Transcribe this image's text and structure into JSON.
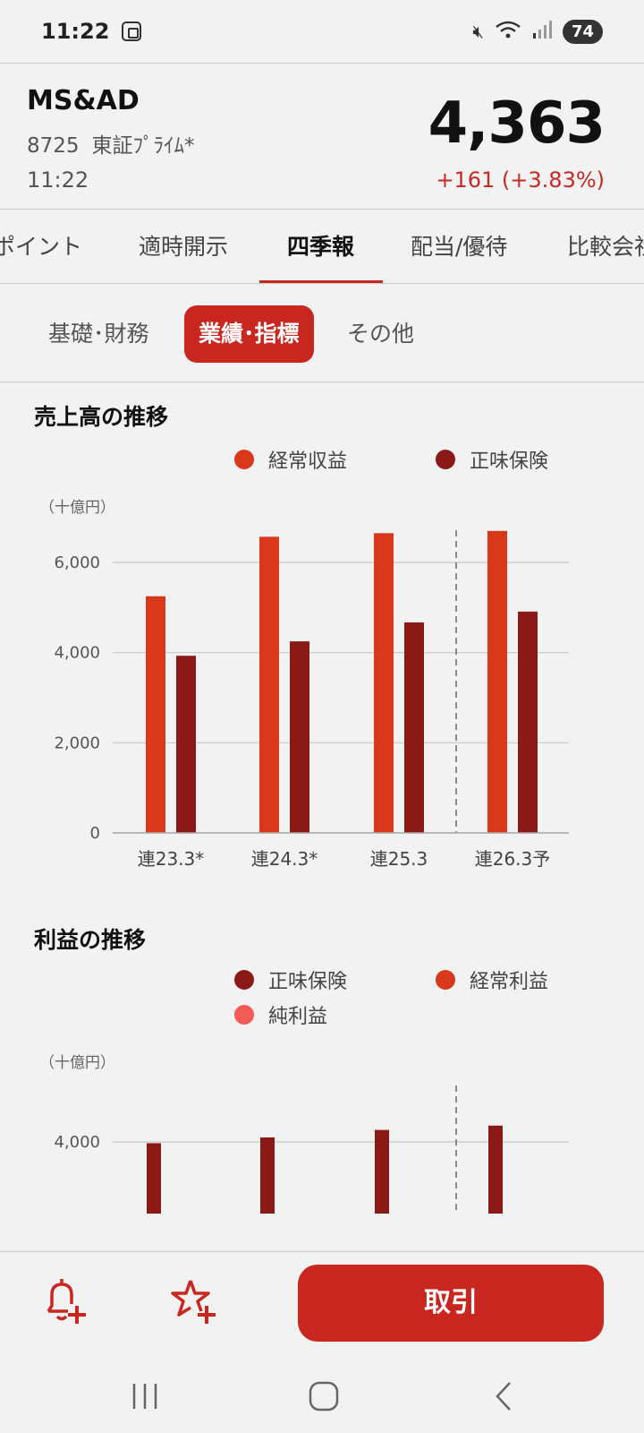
{
  "status_bar": {
    "time": "11:22",
    "battery": "74",
    "icons": [
      "screenshot-icon",
      "mute-icon",
      "wifi-icon",
      "signal-icon",
      "battery-icon"
    ]
  },
  "stock": {
    "name": "MS&AD",
    "code": "8725",
    "market": "東証ﾌﾟﾗｲﾑ*",
    "time": "11:22",
    "price": "4,363",
    "change": "+161 (+3.83%)",
    "change_color": "#c62a22"
  },
  "tabs": [
    {
      "label": "ポイント"
    },
    {
      "label": "適時開示"
    },
    {
      "label": "四季報",
      "active": true
    },
    {
      "label": "配当/優待"
    },
    {
      "label": "比較会社"
    }
  ],
  "subtabs": [
    {
      "label": "基礎･財務"
    },
    {
      "label": "業績･指標",
      "active": true
    },
    {
      "label": "その他"
    }
  ],
  "chart_data": [
    {
      "type": "bar",
      "title": "売上高の推移",
      "unit": "（十億円）",
      "categories": [
        "連23.3*",
        "連24.3*",
        "連25.3",
        "連26.3予"
      ],
      "series": [
        {
          "name": "経常収益",
          "color": "#d9391a",
          "values": [
            5250,
            6570,
            6650,
            6700
          ]
        },
        {
          "name": "正味保険",
          "color": "#8b1a17",
          "values": [
            3930,
            4250,
            4670,
            4910
          ]
        }
      ],
      "ylim": [
        0,
        6900
      ],
      "yticks": [
        0,
        2000,
        4000,
        6000
      ],
      "ytick_labels": [
        "0",
        "2,000",
        "4,000",
        "6,000"
      ],
      "forecast_divider_after": "連25.3",
      "grid": true,
      "legend": "top-right"
    },
    {
      "type": "bar",
      "title": "利益の推移",
      "unit": "（十億円）",
      "categories": [
        "連23.3*",
        "連24.3*",
        "連25.3",
        "連26.3予"
      ],
      "series": [
        {
          "name": "正味保険",
          "color": "#8b1a17",
          "values": [
            3930,
            4250,
            4670,
            4910
          ]
        },
        {
          "name": "経常利益",
          "color": "#d9391a"
        },
        {
          "name": "純利益",
          "color": "#f25a55"
        }
      ],
      "yticks": [
        4000
      ],
      "ytick_labels": [
        "4,000"
      ],
      "forecast_divider_after": "連25.3",
      "grid": true,
      "legend": "top-right"
    }
  ],
  "actions": {
    "trade_label": "取引",
    "icons": [
      "bell-add-icon",
      "star-add-icon"
    ]
  },
  "nav": {
    "icons": [
      "recent-apps-icon",
      "home-icon",
      "back-icon"
    ]
  }
}
